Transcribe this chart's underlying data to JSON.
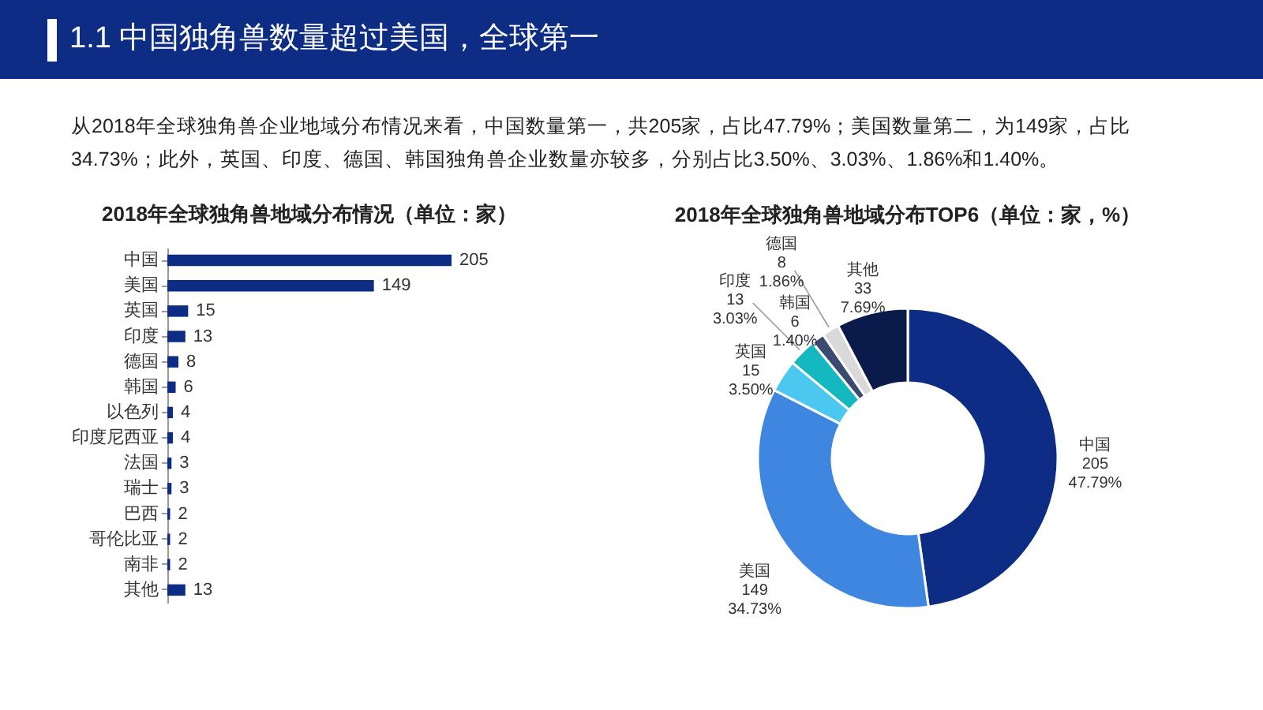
{
  "chart_data": [
    {
      "type": "other",
      "title": "1.1 中国独角兽数量超过美国，全球第一",
      "annotations": [
        "从2018年全球独角兽企业地域分布情况来看，中国数量第一，共205家，占比47.79%；美国数量第二，为149家，占比34.73%；此外，英国、印度、德国、韩国独角兽企业数量亦较多，分别占比3.50%、3.03%、1.86%和1.40%。"
      ]
    },
    {
      "type": "bar",
      "orientation": "horizontal",
      "title": "2018年全球独角兽地域分布情况（单位：家）",
      "categories": [
        "中国",
        "美国",
        "英国",
        "印度",
        "德国",
        "韩国",
        "以色列",
        "印度尼西亚",
        "法国",
        "瑞士",
        "巴西",
        "哥伦比亚",
        "南非",
        "其他"
      ],
      "values": [
        205,
        149,
        15,
        13,
        8,
        6,
        4,
        4,
        3,
        3,
        2,
        2,
        2,
        13
      ],
      "color": "#0c2d83",
      "data_labels": true
    },
    {
      "type": "donut",
      "title": "2018年全球独角兽地域分布TOP6（单位：家，%）",
      "categories": [
        "中国",
        "美国",
        "英国",
        "印度",
        "韩国",
        "德国",
        "其他"
      ],
      "values": [
        47.79,
        34.73,
        3.5,
        3.03,
        1.4,
        1.86,
        7.69
      ],
      "colors": [
        "#0c2d83",
        "#3f86e0",
        "#4cc8f0",
        "#13b8c0",
        "#3a4a70",
        "#d9d9d9",
        "#0a1a4a"
      ],
      "value_labels": [
        "47.79%",
        "34.73%",
        "3.50%",
        "3.03%",
        "1.40%",
        "1.86%",
        "7.69%"
      ],
      "annotations": [
        {
          "text": "205",
          "x": "中国"
        },
        {
          "text": "149",
          "x": "美国"
        },
        {
          "text": "15",
          "x": "英国"
        },
        {
          "text": "13",
          "x": "印度"
        },
        {
          "text": "6",
          "x": "韩国"
        },
        {
          "text": "8",
          "x": "德国"
        },
        {
          "text": "33",
          "x": "其他"
        }
      ]
    }
  ]
}
